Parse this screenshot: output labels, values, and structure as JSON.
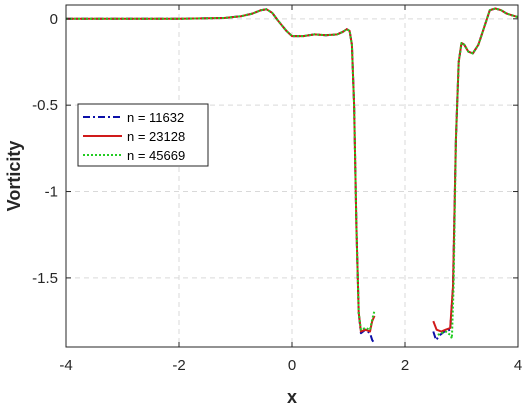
{
  "chart_data": {
    "type": "line",
    "xlabel": "x",
    "ylabel": "Vorticity",
    "xlim": [
      -4,
      4
    ],
    "ylim": [
      -1.9,
      0.08
    ],
    "xticks": [
      -4,
      -2,
      0,
      2,
      4
    ],
    "yticks": [
      0,
      -0.5,
      -1,
      -1.5
    ],
    "xtick_labels": [
      "-4",
      "-2",
      "0",
      "2",
      "4"
    ],
    "ytick_labels": [
      "0",
      "-0.5",
      "-1",
      "-1.5"
    ],
    "grid": true,
    "legend_position": "left",
    "series": [
      {
        "name": "n = 11632",
        "color": "#0b0fa8",
        "style": "dashdot",
        "segments": [
          [
            [
              -4,
              0
            ],
            [
              -2,
              0
            ],
            [
              -1.2,
              0.005
            ],
            [
              -0.9,
              0.015
            ],
            [
              -0.7,
              0.03
            ],
            [
              -0.55,
              0.05
            ],
            [
              -0.45,
              0.055
            ],
            [
              -0.35,
              0.035
            ],
            [
              -0.25,
              -0.01
            ],
            [
              -0.1,
              -0.07
            ],
            [
              0,
              -0.1
            ],
            [
              0.2,
              -0.1
            ],
            [
              0.4,
              -0.09
            ],
            [
              0.6,
              -0.095
            ],
            [
              0.8,
              -0.09
            ],
            [
              0.9,
              -0.075
            ],
            [
              0.97,
              -0.06
            ],
            [
              1.02,
              -0.07
            ],
            [
              1.06,
              -0.15
            ],
            [
              1.1,
              -0.5
            ],
            [
              1.14,
              -1.2
            ],
            [
              1.18,
              -1.7
            ],
            [
              1.22,
              -1.82
            ],
            [
              1.3,
              -1.8
            ],
            [
              1.38,
              -1.82
            ],
            [
              1.42,
              -1.86
            ],
            [
              1.46,
              -1.88
            ]
          ],
          [
            [
              2.5,
              -1.81
            ],
            [
              2.55,
              -1.86
            ],
            [
              2.62,
              -1.83
            ],
            [
              2.7,
              -1.81
            ],
            [
              2.8,
              -1.8
            ],
            [
              2.85,
              -1.55
            ],
            [
              2.9,
              -0.7
            ],
            [
              2.95,
              -0.25
            ],
            [
              3.0,
              -0.14
            ],
            [
              3.05,
              -0.15
            ],
            [
              3.12,
              -0.19
            ],
            [
              3.2,
              -0.2
            ],
            [
              3.3,
              -0.15
            ],
            [
              3.4,
              -0.05
            ],
            [
              3.5,
              0.05
            ],
            [
              3.6,
              0.06
            ],
            [
              3.7,
              0.05
            ],
            [
              3.8,
              0.03
            ],
            [
              3.9,
              0.02
            ],
            [
              4,
              0.01
            ]
          ]
        ]
      },
      {
        "name": "n = 23128",
        "color": "#d01a1a",
        "style": "solid",
        "segments": [
          [
            [
              -4,
              0
            ],
            [
              -2,
              0
            ],
            [
              -1.2,
              0.005
            ],
            [
              -0.9,
              0.015
            ],
            [
              -0.7,
              0.03
            ],
            [
              -0.55,
              0.05
            ],
            [
              -0.45,
              0.055
            ],
            [
              -0.35,
              0.035
            ],
            [
              -0.25,
              -0.01
            ],
            [
              -0.1,
              -0.07
            ],
            [
              0,
              -0.1
            ],
            [
              0.2,
              -0.1
            ],
            [
              0.4,
              -0.09
            ],
            [
              0.6,
              -0.095
            ],
            [
              0.8,
              -0.09
            ],
            [
              0.9,
              -0.075
            ],
            [
              0.97,
              -0.06
            ],
            [
              1.02,
              -0.07
            ],
            [
              1.06,
              -0.15
            ],
            [
              1.1,
              -0.5
            ],
            [
              1.14,
              -1.2
            ],
            [
              1.18,
              -1.7
            ],
            [
              1.22,
              -1.81
            ],
            [
              1.3,
              -1.8
            ],
            [
              1.38,
              -1.81
            ],
            [
              1.42,
              -1.75
            ],
            [
              1.46,
              -1.72
            ]
          ],
          [
            [
              2.5,
              -1.75
            ],
            [
              2.56,
              -1.8
            ],
            [
              2.64,
              -1.81
            ],
            [
              2.72,
              -1.8
            ],
            [
              2.8,
              -1.79
            ],
            [
              2.85,
              -1.55
            ],
            [
              2.9,
              -0.7
            ],
            [
              2.95,
              -0.25
            ],
            [
              3.0,
              -0.14
            ],
            [
              3.05,
              -0.15
            ],
            [
              3.12,
              -0.19
            ],
            [
              3.2,
              -0.2
            ],
            [
              3.3,
              -0.15
            ],
            [
              3.4,
              -0.05
            ],
            [
              3.5,
              0.05
            ],
            [
              3.6,
              0.06
            ],
            [
              3.7,
              0.05
            ],
            [
              3.8,
              0.03
            ],
            [
              3.9,
              0.02
            ],
            [
              4,
              0.01
            ]
          ]
        ]
      },
      {
        "name": "n = 45669",
        "color": "#22cc22",
        "style": "dotted",
        "segments": [
          [
            [
              -4,
              0
            ],
            [
              -2,
              0
            ],
            [
              -1.2,
              0.005
            ],
            [
              -0.9,
              0.015
            ],
            [
              -0.7,
              0.03
            ],
            [
              -0.55,
              0.05
            ],
            [
              -0.45,
              0.055
            ],
            [
              -0.35,
              0.035
            ],
            [
              -0.25,
              -0.01
            ],
            [
              -0.1,
              -0.07
            ],
            [
              0,
              -0.1
            ],
            [
              0.2,
              -0.1
            ],
            [
              0.4,
              -0.09
            ],
            [
              0.6,
              -0.095
            ],
            [
              0.8,
              -0.09
            ],
            [
              0.9,
              -0.075
            ],
            [
              0.97,
              -0.06
            ],
            [
              1.02,
              -0.07
            ],
            [
              1.06,
              -0.15
            ],
            [
              1.1,
              -0.5
            ],
            [
              1.14,
              -1.2
            ],
            [
              1.18,
              -1.7
            ],
            [
              1.22,
              -1.8
            ],
            [
              1.3,
              -1.79
            ],
            [
              1.38,
              -1.8
            ],
            [
              1.42,
              -1.74
            ],
            [
              1.46,
              -1.69
            ]
          ],
          [
            [
              2.58,
              -1.83
            ],
            [
              2.64,
              -1.82
            ],
            [
              2.72,
              -1.81
            ],
            [
              2.8,
              -1.83
            ],
            [
              2.83,
              -1.85
            ],
            [
              2.86,
              -1.55
            ],
            [
              2.9,
              -0.7
            ],
            [
              2.95,
              -0.25
            ],
            [
              3.0,
              -0.14
            ],
            [
              3.05,
              -0.15
            ],
            [
              3.12,
              -0.19
            ],
            [
              3.2,
              -0.2
            ],
            [
              3.3,
              -0.15
            ],
            [
              3.4,
              -0.05
            ],
            [
              3.5,
              0.05
            ],
            [
              3.6,
              0.06
            ],
            [
              3.7,
              0.05
            ],
            [
              3.8,
              0.03
            ],
            [
              3.9,
              0.02
            ],
            [
              4,
              0.01
            ]
          ]
        ]
      }
    ]
  }
}
